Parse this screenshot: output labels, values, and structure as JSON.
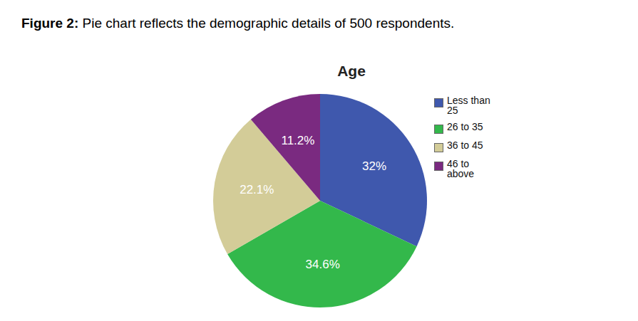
{
  "chart_data": {
    "type": "pie",
    "figure_label": "Figure 2:",
    "caption": "Pie chart reflects the demographic details of 500 respondents.",
    "title": "Age",
    "categories": [
      "Less than 25",
      "26 to 35",
      "36 to 45",
      "46 to above"
    ],
    "values": [
      32,
      34.6,
      22.1,
      11.2
    ],
    "value_labels": [
      "32%",
      "34.6%",
      "22.1%",
      "11.2%"
    ],
    "colors": [
      "#3f58ad",
      "#33b84b",
      "#d3cc98",
      "#7a2a80"
    ],
    "data_labels": true,
    "legend": "right"
  }
}
